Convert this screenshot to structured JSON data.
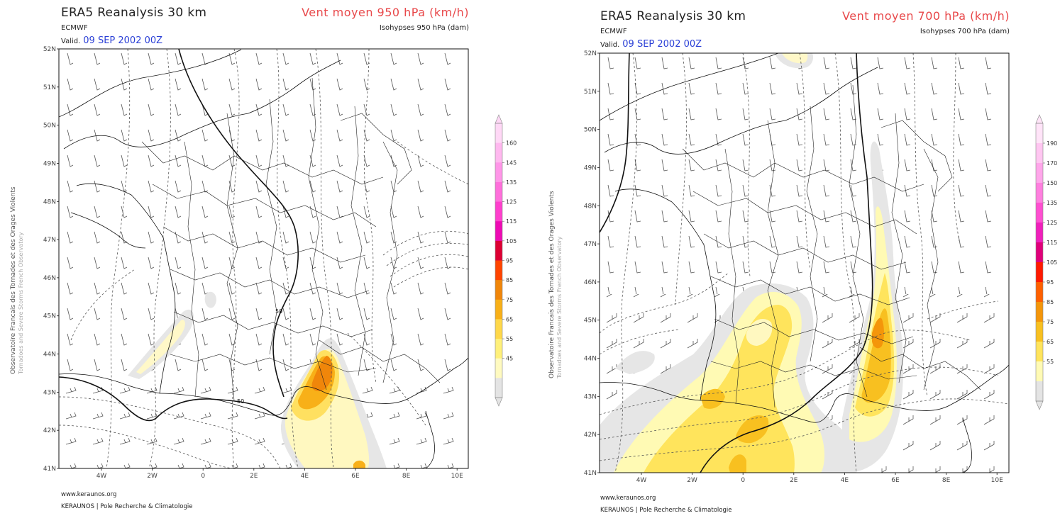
{
  "panels": [
    {
      "title": "ERA5 Reanalysis 30 km",
      "source": "ECMWF",
      "valid_label": "Valid.",
      "valid_date": "09 SEP 2002 00Z",
      "field_title": "Vent moyen 950 hPa (km/h)",
      "isohypse_label": "Isohypses 950 hPa (dam)",
      "lat_labels": [
        "52N",
        "51N",
        "50N",
        "49N",
        "48N",
        "47N",
        "46N",
        "45N",
        "44N",
        "43N",
        "42N",
        "41N"
      ],
      "lon_labels": [
        "4W",
        "2W",
        "0",
        "2E",
        "4E",
        "6E",
        "8E",
        "10E"
      ],
      "colorbar_ticks": [
        "160",
        "145",
        "135",
        "125",
        "115",
        "105",
        "95",
        "85",
        "75",
        "65",
        "55",
        "45"
      ],
      "colorbar_colors": [
        "#ffd8f6",
        "#ffb8ef",
        "#ff96e8",
        "#ff6fdb",
        "#ff3fcd",
        "#ee0bb4",
        "#dd0033",
        "#ff4400",
        "#f0860a",
        "#f8b018",
        "#ffd84a",
        "#fff07a",
        "#fffac0",
        "#e4e4e4"
      ],
      "contour_label_a": "50",
      "contour_label_b": "50"
    },
    {
      "title": "ERA5 Reanalysis 30 km",
      "source": "ECMWF",
      "valid_label": "Valid.",
      "valid_date": "09 SEP 2002 00Z",
      "field_title": "Vent moyen 700 hPa (km/h)",
      "isohypse_label": "Isohypses 700 hPa (dam)",
      "lat_labels": [
        "52N",
        "51N",
        "50N",
        "49N",
        "48N",
        "47N",
        "46N",
        "45N",
        "44N",
        "43N",
        "42N",
        "41N"
      ],
      "lon_labels": [
        "4W",
        "2W",
        "0",
        "2E",
        "4E",
        "6E",
        "8E",
        "10E"
      ],
      "colorbar_ticks": [
        "190",
        "170",
        "150",
        "135",
        "125",
        "115",
        "105",
        "95",
        "85",
        "75",
        "65",
        "55"
      ],
      "colorbar_colors": [
        "#ffe4f8",
        "#ffc6f1",
        "#ffa6ea",
        "#ff7fdf",
        "#ff4fd1",
        "#f020bb",
        "#e0007a",
        "#ff1a00",
        "#ff6000",
        "#f4960a",
        "#f8c020",
        "#ffe45c",
        "#fffab4",
        "#e4e4e4"
      ]
    }
  ],
  "footer": {
    "url": "www.keraunos.org",
    "org": "KERAUNOS | Pole Recherche & Climatologie"
  },
  "side_label": {
    "line1": "Observatoire Francais des Tornades et des Orages Violents",
    "line2": "Tornadoes and Severe Storms French Observatory"
  }
}
